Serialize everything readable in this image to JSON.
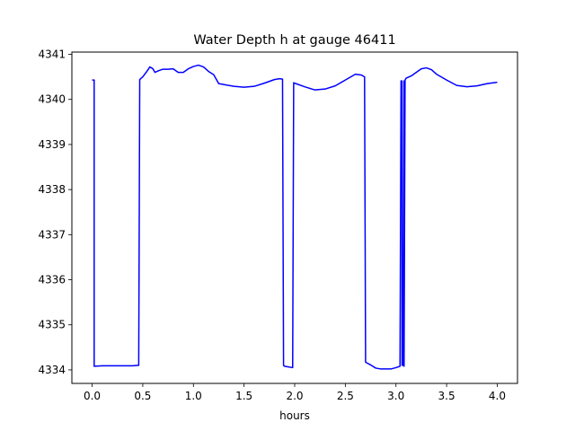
{
  "chart_data": {
    "type": "line",
    "title": "Water Depth h at gauge 46411",
    "xlabel": "hours",
    "ylabel": "",
    "xlim": [
      -0.2,
      4.2
    ],
    "ylim": [
      4333.7,
      4341.05
    ],
    "xticks": [
      0.0,
      0.5,
      1.0,
      1.5,
      2.0,
      2.5,
      3.0,
      3.5,
      4.0
    ],
    "xtick_labels": [
      "0.0",
      "0.5",
      "1.0",
      "1.5",
      "2.0",
      "2.5",
      "3.0",
      "3.5",
      "4.0"
    ],
    "yticks": [
      4334,
      4335,
      4336,
      4337,
      4338,
      4339,
      4340,
      4341
    ],
    "ytick_labels": [
      "4334",
      "4335",
      "4336",
      "4337",
      "4338",
      "4339",
      "4340",
      "4341"
    ],
    "grid": false,
    "colors": {
      "line": "#0000ff",
      "axes": "#000000",
      "background": "#ffffff"
    },
    "series": [
      {
        "x": [
          0.0,
          0.02,
          0.02,
          0.1,
          0.2,
          0.3,
          0.4,
          0.45,
          0.46,
          0.47,
          0.5,
          0.54,
          0.57,
          0.6,
          0.62,
          0.66,
          0.7,
          0.75,
          0.8,
          0.85,
          0.9,
          0.95,
          1.0,
          1.05,
          1.1,
          1.15,
          1.2,
          1.25,
          1.3,
          1.4,
          1.5,
          1.6,
          1.7,
          1.8,
          1.85,
          1.88,
          1.89,
          1.9,
          1.98,
          1.99,
          2.0,
          2.1,
          2.2,
          2.3,
          2.4,
          2.5,
          2.6,
          2.66,
          2.69,
          2.7,
          2.75,
          2.8,
          2.85,
          2.9,
          2.95,
          3.0,
          3.04,
          3.05,
          3.06,
          3.06,
          3.07,
          3.08,
          3.08,
          3.09,
          3.1,
          3.15,
          3.2,
          3.25,
          3.3,
          3.35,
          3.4,
          3.5,
          3.6,
          3.7,
          3.8,
          3.9,
          4.0
        ],
        "y": [
          4340.43,
          4340.43,
          4334.08,
          4334.09,
          4334.09,
          4334.09,
          4334.09,
          4334.1,
          4334.1,
          4340.44,
          4340.5,
          4340.62,
          4340.72,
          4340.68,
          4340.6,
          4340.64,
          4340.67,
          4340.67,
          4340.68,
          4340.6,
          4340.6,
          4340.68,
          4340.73,
          4340.76,
          4340.72,
          4340.62,
          4340.55,
          4340.35,
          4340.33,
          4340.29,
          4340.27,
          4340.29,
          4340.36,
          4340.44,
          4340.46,
          4340.45,
          4334.1,
          4334.08,
          4334.05,
          4340.37,
          4340.36,
          4340.28,
          4340.21,
          4340.23,
          4340.3,
          4340.43,
          4340.56,
          4340.54,
          4340.5,
          4334.17,
          4334.11,
          4334.04,
          4334.02,
          4334.02,
          4334.02,
          4334.05,
          4334.08,
          4340.41,
          4340.41,
          4334.1,
          4334.1,
          4340.41,
          4334.08,
          4340.43,
          4340.47,
          4340.52,
          4340.6,
          4340.68,
          4340.7,
          4340.66,
          4340.56,
          4340.43,
          4340.31,
          4340.28,
          4340.3,
          4340.35,
          4340.38
        ]
      }
    ]
  }
}
